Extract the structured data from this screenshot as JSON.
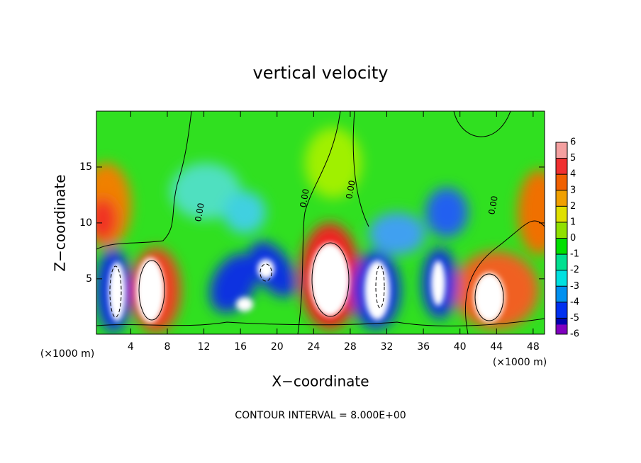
{
  "chart_data": {
    "type": "contour",
    "title": "vertical velocity",
    "x_label": "X−coordinate",
    "y_label": "Z−coordinate",
    "x_unit_label": "(×1000 m)",
    "footer": "CONTOUR INTERVAL = 8.000E+00",
    "xlim": [
      0.25,
      49.25
    ],
    "xticks": [
      4,
      8,
      12,
      16,
      20,
      24,
      28,
      32,
      36,
      40,
      44,
      48
    ],
    "ylim": [
      0.05,
      20
    ],
    "yticks": [
      5,
      10,
      15
    ],
    "contour_labels": [
      {
        "text": "0.00"
      },
      {
        "text": "0.00"
      },
      {
        "text": "0.00"
      },
      {
        "text": "0.00"
      }
    ],
    "colorbar": {
      "ticks": [
        6,
        5,
        4,
        3,
        2,
        1,
        0,
        -1,
        -2,
        -3,
        -4,
        -5,
        -6
      ],
      "colors": [
        "#f4a0a0",
        "#f03030",
        "#f06000",
        "#f0a000",
        "#e0e000",
        "#90e000",
        "#00e000",
        "#00e090",
        "#00e0e0",
        "#0090f0",
        "#0030f0",
        "#0000b0",
        "#8000c0"
      ]
    }
  }
}
